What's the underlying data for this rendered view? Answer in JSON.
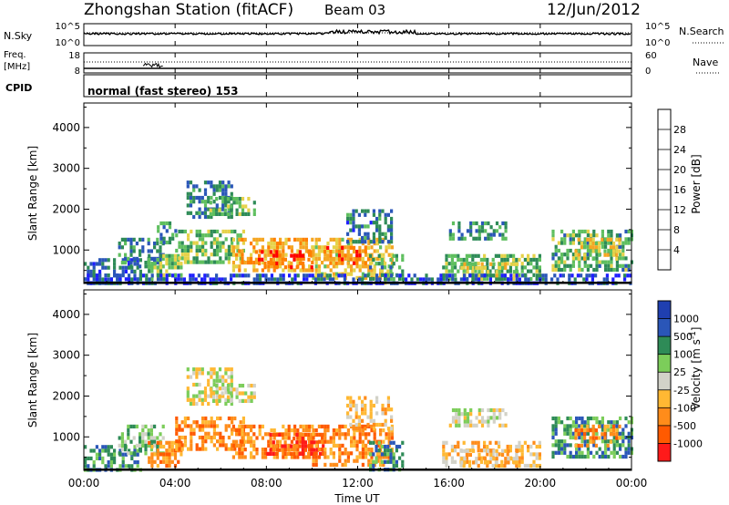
{
  "header": {
    "station": "Zhongshan Station (fitACF)",
    "beam": "Beam 03",
    "date": "12/Jun/2012"
  },
  "nsky_panel": {
    "label": "N.Sky",
    "left_ticks": [
      "10^5",
      "10^0"
    ],
    "right_ticks": [
      "10^5",
      "10^0"
    ],
    "right_label": "N.Search"
  },
  "freq_panel": {
    "label_line1": "Freq.",
    "label_line2": "[MHz]",
    "left_ticks": [
      "18",
      "8"
    ],
    "right_ticks": [
      "60",
      "0"
    ],
    "right_label": "Nave"
  },
  "cpid_panel": {
    "label": "CPID",
    "text": "normal (fast stereo) 153"
  },
  "colors": {
    "power": [
      "#1f1fff",
      "#2a56b8",
      "#2e8b57",
      "#5fbf5f",
      "#e6d24a",
      "#f5a623",
      "#ff7f00",
      "#ff0000"
    ],
    "velocity": [
      "#ff1a1a",
      "#ff5a00",
      "#ff8c1a",
      "#ffb833",
      "#d2d2c8",
      "#7ccd5a",
      "#2e8b57",
      "#2a56b8",
      "#1f3fb0"
    ],
    "ground": "#a0a0a0"
  },
  "chart_data": [
    {
      "type": "heatmap",
      "name": "Power",
      "ylabel": "Slant Range [km]",
      "xlabel": "",
      "x_ticks": [
        "00:00",
        "04:00",
        "08:00",
        "12:00",
        "16:00",
        "20:00",
        "00:00"
      ],
      "y_ticks": [
        1000,
        2000,
        3000,
        4000
      ],
      "xlim": [
        0,
        24
      ],
      "ylim": [
        180,
        4600
      ],
      "colorbar": {
        "label": "Power [dB]",
        "range": [
          0,
          32
        ],
        "ticks": [
          4,
          8,
          12,
          16,
          20,
          24,
          28
        ]
      },
      "regions": [
        {
          "t": [
            0.0,
            2.5
          ],
          "r": [
            200,
            800
          ],
          "v": 7
        },
        {
          "t": [
            1.5,
            3.5
          ],
          "r": [
            600,
            1300
          ],
          "v": 9
        },
        {
          "t": [
            2.8,
            4.3
          ],
          "r": [
            300,
            900
          ],
          "v": 14
        },
        {
          "t": [
            3.2,
            4.0
          ],
          "r": [
            1200,
            1700
          ],
          "v": 10
        },
        {
          "t": [
            4.0,
            7.0
          ],
          "r": [
            700,
            1500
          ],
          "v": 14
        },
        {
          "t": [
            4.5,
            6.5
          ],
          "r": [
            1800,
            2700
          ],
          "v": 9
        },
        {
          "t": [
            5.5,
            7.5
          ],
          "r": [
            1900,
            2300
          ],
          "v": 13
        },
        {
          "t": [
            6.5,
            10.0
          ],
          "r": [
            500,
            1300
          ],
          "v": 22
        },
        {
          "t": [
            7.5,
            10.0
          ],
          "r": [
            600,
            1000
          ],
          "v": 28
        },
        {
          "t": [
            10.0,
            13.5
          ],
          "r": [
            300,
            1300
          ],
          "v": 19
        },
        {
          "t": [
            10.5,
            12.5
          ],
          "r": [
            700,
            1100
          ],
          "v": 24
        },
        {
          "t": [
            11.5,
            13.5
          ],
          "r": [
            1200,
            2000
          ],
          "v": 8
        },
        {
          "t": [
            12.5,
            14.0
          ],
          "r": [
            200,
            900
          ],
          "v": 12
        },
        {
          "t": [
            15.7,
            20.0
          ],
          "r": [
            300,
            900
          ],
          "v": 13
        },
        {
          "t": [
            16.0,
            18.5
          ],
          "r": [
            1300,
            1700
          ],
          "v": 10
        },
        {
          "t": [
            16.5,
            19.0
          ],
          "r": [
            400,
            700
          ],
          "v": 17
        },
        {
          "t": [
            20.5,
            24.0
          ],
          "r": [
            500,
            1500
          ],
          "v": 12
        },
        {
          "t": [
            21.5,
            23.5
          ],
          "r": [
            800,
            1300
          ],
          "v": 19
        },
        {
          "t": [
            0.0,
            24.0
          ],
          "r": [
            180,
            420
          ],
          "v": 5
        }
      ]
    },
    {
      "type": "heatmap",
      "name": "Velocity",
      "ylabel": "Slant Range [km]",
      "xlabel": "Time UT",
      "x_ticks": [
        "00:00",
        "04:00",
        "08:00",
        "12:00",
        "16:00",
        "20:00",
        "00:00"
      ],
      "y_ticks": [
        1000,
        2000,
        3000,
        4000
      ],
      "xlim": [
        0,
        24
      ],
      "ylim": [
        180,
        4600
      ],
      "colorbar": {
        "label": "Velocity [m s^-1]",
        "ticks": [
          "1000",
          "500",
          "100",
          "25",
          "-25",
          "-100",
          "-500",
          "-1000"
        ],
        "bins": [
          "< -1000",
          "-1000 to -500",
          "-500 to -100",
          "-100 to -25",
          "-25 to 25",
          "25 to 100",
          "100 to 500",
          "500 to 1000",
          "> 1000"
        ]
      },
      "regions": [
        {
          "t": [
            0.0,
            2.5
          ],
          "r": [
            200,
            800
          ],
          "v": 6
        },
        {
          "t": [
            1.5,
            3.5
          ],
          "r": [
            600,
            1300
          ],
          "v": 5
        },
        {
          "t": [
            2.8,
            4.3
          ],
          "r": [
            300,
            900
          ],
          "v": 2
        },
        {
          "t": [
            4.0,
            7.0
          ],
          "r": [
            700,
            1500
          ],
          "v": 2
        },
        {
          "t": [
            4.5,
            6.5
          ],
          "r": [
            1800,
            2700
          ],
          "v": 4
        },
        {
          "t": [
            5.5,
            7.5
          ],
          "r": [
            1900,
            2300
          ],
          "v": 4
        },
        {
          "t": [
            6.5,
            10.0
          ],
          "r": [
            500,
            1300
          ],
          "v": 2
        },
        {
          "t": [
            8.0,
            10.5
          ],
          "r": [
            600,
            1100
          ],
          "v": 1
        },
        {
          "t": [
            10.0,
            13.5
          ],
          "r": [
            300,
            1300
          ],
          "v": 2
        },
        {
          "t": [
            11.5,
            13.5
          ],
          "r": [
            1200,
            2000
          ],
          "v": 3
        },
        {
          "t": [
            12.5,
            14.0
          ],
          "r": [
            200,
            900
          ],
          "v": 6
        },
        {
          "t": [
            15.7,
            20.0
          ],
          "r": [
            300,
            900
          ],
          "v": 3
        },
        {
          "t": [
            16.0,
            18.5
          ],
          "r": [
            1300,
            1700
          ],
          "v": 4
        },
        {
          "t": [
            16.5,
            19.0
          ],
          "r": [
            400,
            700
          ],
          "v": 3
        },
        {
          "t": [
            20.5,
            24.0
          ],
          "r": [
            500,
            1500
          ],
          "v": 6
        },
        {
          "t": [
            21.5,
            23.5
          ],
          "r": [
            800,
            1300
          ],
          "v": 2
        }
      ]
    }
  ]
}
